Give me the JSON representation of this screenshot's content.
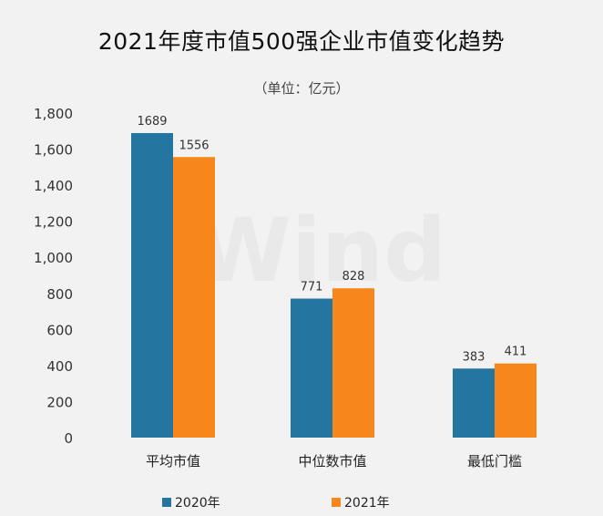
{
  "chart_data": {
    "type": "bar",
    "title": "2021年度市值500强企业市值变化趋势",
    "subtitle": "（单位：亿元）",
    "categories": [
      "平均市值",
      "中位数市值",
      "最低门槛"
    ],
    "series": [
      {
        "name": "2020年",
        "values": [
          1689,
          771,
          383
        ],
        "color": "#2475a0"
      },
      {
        "name": "2021年",
        "values": [
          1556,
          828,
          411
        ],
        "color": "#f7871b"
      }
    ],
    "ylim": [
      0,
      1800
    ],
    "yticks": [
      "0",
      "200",
      "400",
      "600",
      "800",
      "1,000",
      "1,200",
      "1,400",
      "1,600",
      "1,800"
    ],
    "grid": false,
    "legend_position": "bottom",
    "watermark": "Wind"
  }
}
